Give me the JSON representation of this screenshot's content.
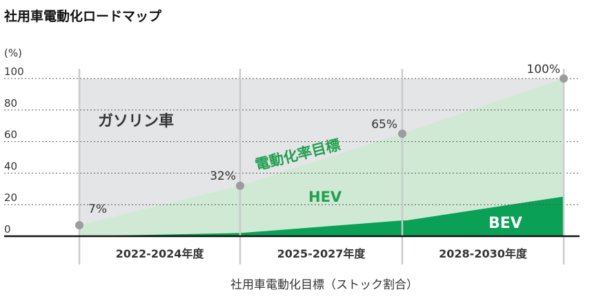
{
  "chart_data": {
    "type": "area",
    "title": "社用車電動化ロードマップ",
    "y_unit": "(%)",
    "ylim": [
      0,
      100
    ],
    "y_ticks": [
      "0",
      "20",
      "40",
      "60",
      "80",
      "100"
    ],
    "periods": [
      "2022-2024年度",
      "2025-2027年度",
      "2028-2030年度"
    ],
    "xlabel": "社用車電動化目標（ストック割合）",
    "electrification_target_points": [
      {
        "label": "7%",
        "value": 7
      },
      {
        "label": "32%",
        "value": 32
      },
      {
        "label": "65%",
        "value": 65
      },
      {
        "label": "100%",
        "value": 100
      }
    ],
    "bev_values": [
      0,
      2,
      10,
      25
    ],
    "area_labels": {
      "gasoline": "ガソリン車",
      "hev": "HEV",
      "bev": "BEV",
      "target_line": "電動化率目標"
    },
    "colors": {
      "gasoline": "#e3e5e6",
      "hev": "#cfe9d4",
      "bev": "#0aa055",
      "marker": "#9a9c9e",
      "divider": "#c8cacb",
      "axis": "#111111"
    }
  }
}
